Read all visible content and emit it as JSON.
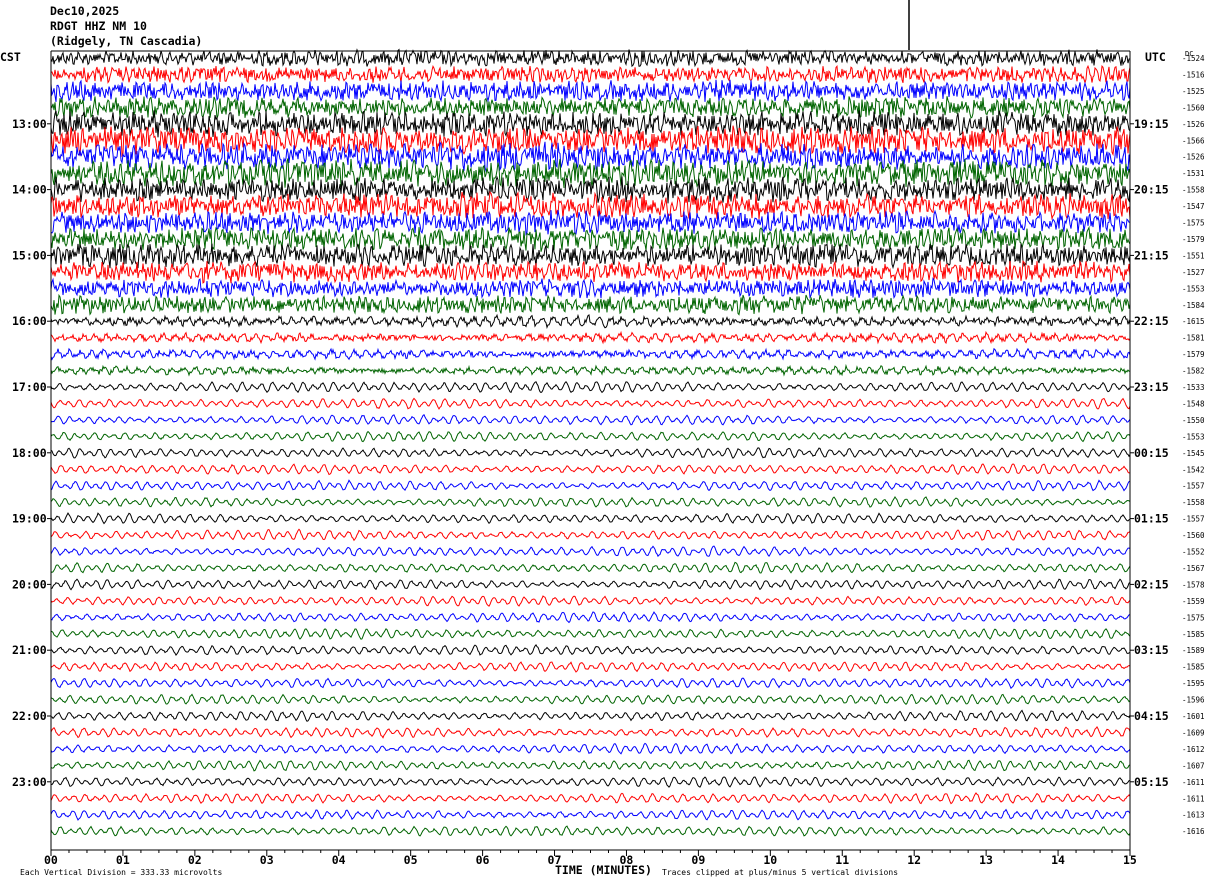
{
  "header": {
    "date": "Dec10,2025",
    "station": "RDGT HHZ NM 10",
    "location": "(Ridgely, TN Cascadia)"
  },
  "left_tz": "CST",
  "right_tz": "UTC",
  "dc_label": "DC",
  "footer": {
    "division_note": "Each Vertical Division =  333.33 microvolts",
    "clip_note": "Traces clipped at plus/minus 5 vertical divisions",
    "xlabel": "TIME (MINUTES)"
  },
  "chart_data": {
    "type": "line",
    "title": "",
    "xlabel": "TIME (MINUTES)",
    "xlim": [
      0,
      15
    ],
    "x_ticks": [
      "00",
      "01",
      "02",
      "03",
      "04",
      "05",
      "06",
      "07",
      "08",
      "09",
      "10",
      "11",
      "12",
      "13",
      "14",
      "15"
    ],
    "trace_colors": [
      "#000000",
      "#ff0000",
      "#0000ff",
      "#006400"
    ],
    "traces_per_hour": 4,
    "left_hour_labels": [
      "13:00",
      "14:00",
      "15:00",
      "16:00",
      "17:00",
      "18:00",
      "19:00",
      "20:00",
      "21:00",
      "22:00",
      "23:00"
    ],
    "right_hour_labels": [
      "19:15",
      "20:15",
      "21:15",
      "22:15",
      "23:15",
      "00:15",
      "01:15",
      "02:15",
      "03:15",
      "04:15",
      "05:15"
    ],
    "first_hour_row": 4,
    "dc_offsets": [
      "-1524",
      "-1516",
      "-1525",
      "-1560",
      "-1526",
      "-1566",
      "-1526",
      "-1531",
      "-1558",
      "-1547",
      "-1575",
      "-1579",
      "-1551",
      "-1527",
      "-1553",
      "-1584",
      "-1615",
      "-1581",
      "-1579",
      "-1582",
      "-1533",
      "-1548",
      "-1550",
      "-1553",
      "-1545",
      "-1542",
      "-1557",
      "-1558",
      "-1557",
      "-1560",
      "-1552",
      "-1567",
      "-1578",
      "-1559",
      "-1575",
      "-1585",
      "-1589",
      "-1585",
      "-1595",
      "-1596",
      "-1601",
      "-1609",
      "-1612",
      "-1607",
      "-1611",
      "-1611",
      "-1613",
      "-1616"
    ],
    "trace_amplitudes": [
      7,
      7,
      9,
      9,
      11,
      12,
      12,
      12,
      11,
      11,
      10,
      10,
      10,
      9,
      8,
      8,
      6,
      5,
      5,
      4.5,
      4.5,
      4,
      4,
      4,
      4,
      4,
      4,
      4,
      4,
      4,
      4,
      4,
      4,
      4,
      4,
      4,
      4,
      4,
      4,
      4,
      4,
      4,
      4,
      4,
      4,
      4,
      4,
      4
    ],
    "trace_style": [
      "noise",
      "noise",
      "noise",
      "noise",
      "noise",
      "noise",
      "noise",
      "noise",
      "noise",
      "noise",
      "noise",
      "noise",
      "noise",
      "noise",
      "noise",
      "noise",
      "mixed",
      "mixed",
      "mixed",
      "mixed",
      "wave",
      "wave",
      "wave",
      "wave",
      "wave",
      "wave",
      "wave",
      "wave",
      "wave",
      "wave",
      "wave",
      "wave",
      "wave",
      "wave",
      "wave",
      "wave",
      "wave",
      "wave",
      "wave",
      "wave",
      "wave",
      "wave",
      "wave",
      "wave",
      "wave",
      "wave",
      "wave",
      "wave"
    ]
  }
}
